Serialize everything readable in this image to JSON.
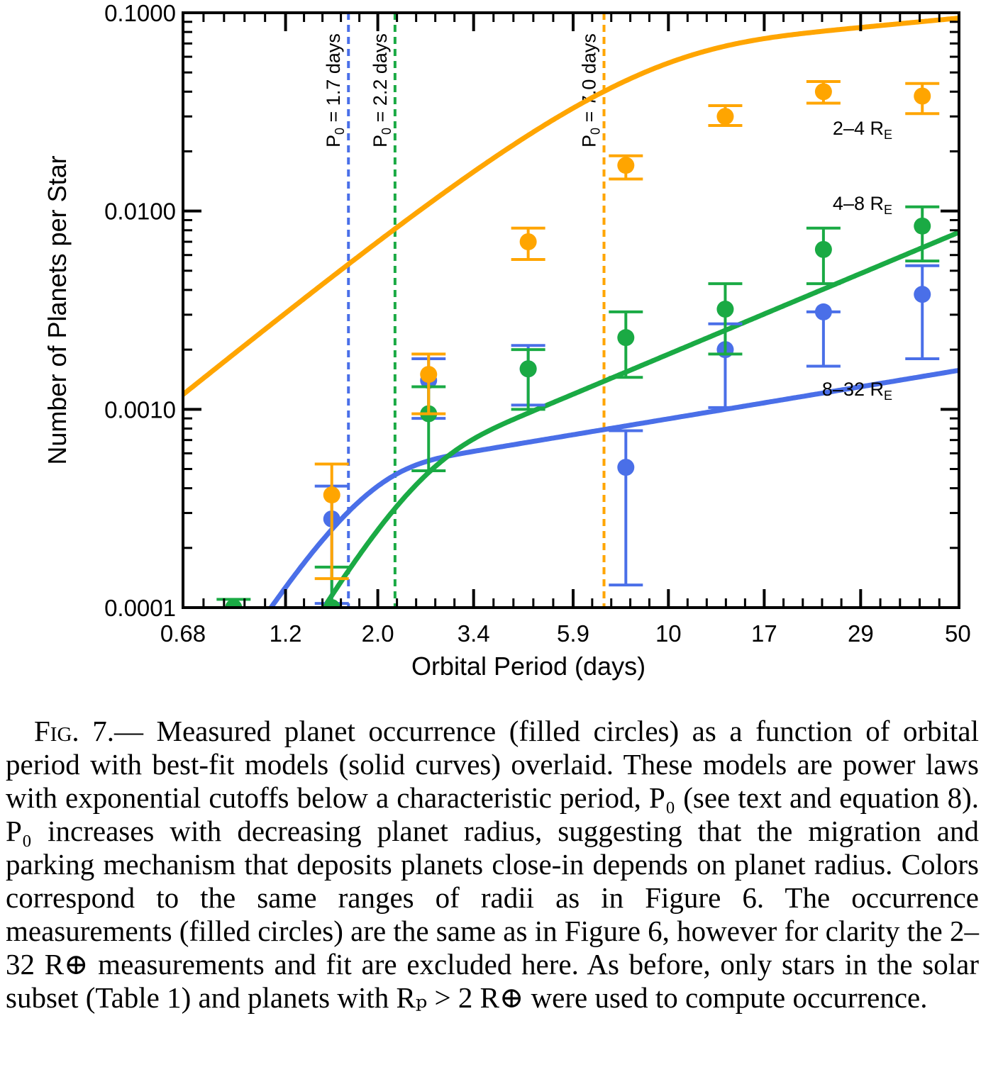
{
  "chart_data": {
    "type": "scatter",
    "xlabel": "Orbital Period (days)",
    "ylabel": "Number of Planets per Star",
    "x_scale": "log",
    "y_scale": "log",
    "xlim": [
      0.68,
      50
    ],
    "ylim": [
      0.0001,
      0.1
    ],
    "x_ticks": [
      0.68,
      1.2,
      2.0,
      3.4,
      5.9,
      10,
      17,
      29,
      50
    ],
    "x_tick_labels": [
      "0.68",
      "1.2",
      "2.0",
      "3.4",
      "5.9",
      "10",
      "17",
      "29",
      "50"
    ],
    "y_ticks": [
      0.0001,
      0.001,
      0.01,
      0.1
    ],
    "y_tick_labels": [
      "0.0001",
      "0.0010",
      "0.0100",
      "0.1000"
    ],
    "series": [
      {
        "name": "2–4 R_E",
        "label_main": "2–4 R",
        "label_sub": "E",
        "color": "#FFA500",
        "points": [
          {
            "x": 1.55,
            "y": 0.00037,
            "lo": 0.00014,
            "hi": 0.00053
          },
          {
            "x": 2.65,
            "y": 0.0015,
            "lo": 0.00095,
            "hi": 0.0019
          },
          {
            "x": 4.6,
            "y": 0.007,
            "lo": 0.0057,
            "hi": 0.0082
          },
          {
            "x": 7.9,
            "y": 0.017,
            "lo": 0.0145,
            "hi": 0.019
          },
          {
            "x": 13.7,
            "y": 0.03,
            "lo": 0.027,
            "hi": 0.034
          },
          {
            "x": 23.6,
            "y": 0.04,
            "lo": 0.035,
            "hi": 0.045
          },
          {
            "x": 40.8,
            "y": 0.038,
            "lo": 0.031,
            "hi": 0.044
          }
        ],
        "fit": {
          "P0": 7.0,
          "k": 0.043,
          "beta": 0.2,
          "gamma": 1.5
        },
        "cutoff_label_main": "P",
        "cutoff_label_sub": "0",
        "cutoff_label_rest": " = 7.0 days"
      },
      {
        "name": "4–8 R_E",
        "label_main": "4–8 R",
        "label_sub": "E",
        "color": "#1AAA44",
        "points": [
          {
            "x": 0.9,
            "y": 0.0001,
            "lo": 8e-05,
            "hi": 0.00011
          },
          {
            "x": 1.55,
            "y": 0.0001,
            "lo": 8e-05,
            "hi": 0.00016
          },
          {
            "x": 2.65,
            "y": 0.00095,
            "lo": 0.00049,
            "hi": 0.0013
          },
          {
            "x": 4.6,
            "y": 0.0016,
            "lo": 0.001,
            "hi": 0.002
          },
          {
            "x": 7.9,
            "y": 0.0023,
            "lo": 0.00145,
            "hi": 0.0031
          },
          {
            "x": 13.7,
            "y": 0.0032,
            "lo": 0.0019,
            "hi": 0.0043
          },
          {
            "x": 23.6,
            "y": 0.0064,
            "lo": 0.0043,
            "hi": 0.0082
          },
          {
            "x": 40.8,
            "y": 0.0084,
            "lo": 0.0056,
            "hi": 0.0105
          }
        ],
        "fit": {
          "P0": 2.2,
          "k": 0.00025,
          "beta": 0.88,
          "gamma": 2.8
        },
        "cutoff_label_main": "P",
        "cutoff_label_sub": "0",
        "cutoff_label_rest": " = 2.2 days"
      },
      {
        "name": "8–32 R_E",
        "label_main": "8–32 R",
        "label_sub": "E",
        "color": "#4A6FE8",
        "points": [
          {
            "x": 1.55,
            "y": 0.00028,
            "lo": 0.000105,
            "hi": 0.00041
          },
          {
            "x": 2.65,
            "y": 0.0014,
            "lo": 0.0009,
            "hi": 0.0018
          },
          {
            "x": 4.6,
            "y": 0.0016,
            "lo": 0.00105,
            "hi": 0.0021
          },
          {
            "x": 7.9,
            "y": 0.00051,
            "lo": 0.00013,
            "hi": 0.00078
          },
          {
            "x": 13.7,
            "y": 0.002,
            "lo": 0.00102,
            "hi": 0.0027
          },
          {
            "x": 23.6,
            "y": 0.0031,
            "lo": 0.00165,
            "hi": 0.0031
          },
          {
            "x": 40.8,
            "y": 0.0038,
            "lo": 0.0018,
            "hi": 0.0053
          }
        ],
        "fit": {
          "P0": 1.7,
          "k": 0.0004,
          "beta": 0.35,
          "gamma": 3.0
        },
        "cutoff_label_main": "P",
        "cutoff_label_sub": "0",
        "cutoff_label_rest": " = 1.7 days"
      }
    ]
  },
  "caption": {
    "fig_label": "Fig. 7.",
    "text": "— Measured planet occurrence (filled circles) as a function of orbital period with best-fit models (solid curves) overlaid. These models are power laws with exponential cutoffs below a characteristic period, P₀ (see text and equation 8). P₀ increases with decreasing planet radius, suggesting that the migration and parking mechanism that deposits planets close-in depends on planet radius. Colors correspond to the same ranges of radii as in Figure 6. The occurrence measurements (filled circles) are the same as in Figure 6, however for clarity the 2–32 R⊕ measurements and fit are excluded here. As before, only stars in the solar subset (Table 1) and planets with Rₚ > 2 R⊕ were used to compute occurrence."
  }
}
